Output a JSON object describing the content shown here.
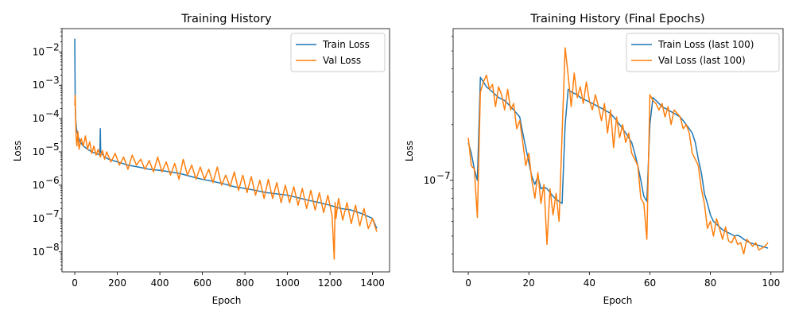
{
  "chart_data": [
    {
      "type": "line",
      "title": "Training History",
      "xlabel": "Epoch",
      "ylabel": "Loss",
      "yscale": "log",
      "xlim": [
        -60,
        1480
      ],
      "ylim": [
        2.5e-09,
        0.05
      ],
      "xticks": [
        0,
        200,
        400,
        600,
        800,
        1000,
        1200,
        1400
      ],
      "xtick_labels": [
        "0",
        "200",
        "400",
        "600",
        "800",
        "1000",
        "1200",
        "1400"
      ],
      "yticks": [
        1e-08,
        1e-07,
        1e-06,
        1e-05,
        0.0001,
        0.001,
        0.01
      ],
      "ytick_labels": [
        "10",
        "10",
        "10",
        "10",
        "10",
        "10",
        "10"
      ],
      "ytick_exponents": [
        "−8",
        "−7",
        "−6",
        "−5",
        "−4",
        "−3",
        "−2"
      ],
      "legend": "top-right",
      "series": [
        {
          "name": "Train Loss",
          "color": "#1f77b4",
          "x": [
            0,
            2,
            4,
            8,
            15,
            25,
            40,
            60,
            80,
            100,
            118,
            120,
            122,
            140,
            160,
            200,
            250,
            300,
            350,
            400,
            450,
            500,
            550,
            600,
            650,
            700,
            750,
            800,
            850,
            900,
            950,
            1000,
            1050,
            1100,
            1150,
            1200,
            1250,
            1300,
            1350,
            1400,
            1420
          ],
          "values": [
            0.025,
            0.0003,
            0.0001,
            5e-05,
            3e-05,
            2e-05,
            1.5e-05,
            1.2e-05,
            1e-05,
            9e-06,
            8e-06,
            5e-05,
            1e-05,
            7e-06,
            6e-06,
            5e-06,
            4e-06,
            3.5e-06,
            3e-06,
            2.8e-06,
            2.5e-06,
            2.2e-06,
            1.8e-06,
            1.5e-06,
            1.3e-06,
            1.1e-06,
            9e-07,
            8e-07,
            7e-07,
            6e-07,
            5.5e-07,
            5e-07,
            4.2e-07,
            3.5e-07,
            3e-07,
            2.5e-07,
            2e-07,
            1.8e-07,
            1.4e-07,
            1e-07,
            5e-08
          ]
        },
        {
          "name": "Val Loss",
          "color": "#ff7f0e",
          "x": [
            0,
            2,
            4,
            6,
            10,
            15,
            20,
            30,
            40,
            50,
            60,
            70,
            80,
            90,
            100,
            110,
            120,
            130,
            140,
            150,
            170,
            190,
            210,
            230,
            250,
            270,
            290,
            310,
            330,
            350,
            370,
            390,
            410,
            430,
            450,
            470,
            490,
            510,
            530,
            550,
            570,
            590,
            610,
            630,
            650,
            670,
            690,
            710,
            730,
            750,
            770,
            790,
            810,
            830,
            850,
            870,
            890,
            910,
            930,
            950,
            970,
            990,
            1010,
            1030,
            1050,
            1070,
            1090,
            1110,
            1130,
            1150,
            1170,
            1190,
            1210,
            1220,
            1224,
            1228,
            1240,
            1260,
            1280,
            1300,
            1320,
            1340,
            1360,
            1380,
            1400,
            1420
          ],
          "values": [
            0.00025,
            0.0005,
            0.0001,
            3e-05,
            1.5e-05,
            4e-05,
            1.2e-05,
            2.5e-05,
            1.5e-05,
            3e-05,
            1.2e-05,
            2e-05,
            9e-06,
            1.5e-05,
            8e-06,
            1.2e-05,
            7e-06,
            1.1e-05,
            6e-06,
            1e-05,
            5e-06,
            9e-06,
            4e-06,
            7e-06,
            3e-06,
            8e-06,
            4e-06,
            6e-06,
            3e-06,
            5.5e-06,
            2.5e-06,
            7e-06,
            2.5e-06,
            5e-06,
            2e-06,
            4.5e-06,
            1.5e-06,
            6e-06,
            2e-06,
            4e-06,
            1.5e-06,
            3.5e-06,
            1.5e-06,
            3e-06,
            1.2e-06,
            3.5e-06,
            1e-06,
            2e-06,
            9e-07,
            2.5e-06,
            7e-07,
            2e-06,
            6e-07,
            1.8e-06,
            5e-07,
            1.4e-06,
            4e-07,
            1.5e-06,
            4e-07,
            1.2e-06,
            3e-07,
            1e-06,
            3e-07,
            9e-07,
            2.5e-07,
            8e-07,
            2e-07,
            7e-07,
            1.8e-07,
            6e-07,
            1.5e-07,
            5e-07,
            1.2e-07,
            6e-09,
            3e-07,
            1e-07,
            4e-07,
            9e-08,
            3e-07,
            7e-08,
            2.5e-07,
            6e-08,
            2e-07,
            5e-08,
            1e-07,
            4e-08
          ]
        }
      ]
    },
    {
      "type": "line",
      "title": "Training History (Final Epochs)",
      "xlabel": "Epoch",
      "ylabel": "Loss",
      "yscale": "log",
      "xlim": [
        -5,
        104
      ],
      "ylim": [
        3.2e-08,
        6.6e-07
      ],
      "xticks": [
        0,
        20,
        40,
        60,
        80,
        100
      ],
      "xtick_labels": [
        "0",
        "20",
        "40",
        "60",
        "80",
        "100"
      ],
      "yticks": [
        1e-07
      ],
      "ytick_labels": [
        "10"
      ],
      "ytick_exponents": [
        "−7"
      ],
      "legend": "top-right",
      "series": [
        {
          "name": "Train Loss (last 100)",
          "color": "#1f77b4",
          "x": [
            0,
            1,
            2,
            3,
            4,
            5,
            6,
            7,
            8,
            9,
            10,
            11,
            12,
            13,
            14,
            15,
            16,
            17,
            18,
            19,
            20,
            21,
            22,
            23,
            24,
            25,
            26,
            27,
            28,
            29,
            30,
            31,
            32,
            33,
            34,
            35,
            36,
            37,
            38,
            39,
            40,
            41,
            42,
            43,
            44,
            45,
            46,
            47,
            48,
            49,
            50,
            51,
            52,
            53,
            54,
            55,
            56,
            57,
            58,
            59,
            60,
            61,
            62,
            63,
            64,
            65,
            66,
            67,
            68,
            69,
            70,
            71,
            72,
            73,
            74,
            75,
            76,
            77,
            78,
            79,
            80,
            81,
            82,
            83,
            84,
            85,
            86,
            87,
            88,
            89,
            90,
            91,
            92,
            93,
            94,
            95,
            96,
            97,
            98,
            99
          ],
          "values": [
            1.6e-07,
            1.4e-07,
            1.15e-07,
            1e-07,
            3.6e-07,
            3.4e-07,
            3.2e-07,
            3.1e-07,
            3e-07,
            2.9e-07,
            2.8e-07,
            2.75e-07,
            2.7e-07,
            2.6e-07,
            2.5e-07,
            2.4e-07,
            2.3e-07,
            2.2e-07,
            1.8e-07,
            1.5e-07,
            1.25e-07,
            1.05e-07,
            9.5e-08,
            1.05e-07,
            9e-08,
            9.2e-08,
            9e-08,
            8.6e-08,
            8.2e-08,
            7.9e-08,
            7.7e-08,
            7.5e-08,
            2e-07,
            3.1e-07,
            3e-07,
            2.95e-07,
            2.9e-07,
            2.8e-07,
            2.75e-07,
            2.7e-07,
            2.65e-07,
            2.6e-07,
            2.55e-07,
            2.5e-07,
            2.45e-07,
            2.4e-07,
            2.35e-07,
            2.3e-07,
            2.2e-07,
            2.1e-07,
            2e-07,
            1.9e-07,
            1.8e-07,
            1.7e-07,
            1.6e-07,
            1.4e-07,
            1.2e-07,
            1e-07,
            8.2e-08,
            7.7e-08,
            2e-07,
            2.8e-07,
            2.7e-07,
            2.6e-07,
            2.5e-07,
            2.45e-07,
            2.4e-07,
            2.35e-07,
            2.3e-07,
            2.25e-07,
            2.2e-07,
            2.1e-07,
            2e-07,
            1.9e-07,
            1.8e-07,
            1.6e-07,
            1.3e-07,
            1.1e-07,
            8.5e-08,
            7.5e-08,
            6.5e-08,
            6e-08,
            5.8e-08,
            5.6e-08,
            5.4e-08,
            5.3e-08,
            5.2e-08,
            5.1e-08,
            5e-08,
            5.05e-08,
            4.95e-08,
            4.8e-08,
            4.7e-08,
            4.6e-08,
            4.55e-08,
            4.5e-08,
            4.45e-08,
            4.4e-08,
            4.35e-08,
            4.3e-08
          ]
        },
        {
          "name": "Val Loss (last 100)",
          "color": "#ff7f0e",
          "x": [
            0,
            1,
            2,
            3,
            4,
            5,
            6,
            7,
            8,
            9,
            10,
            11,
            12,
            13,
            14,
            15,
            16,
            17,
            18,
            19,
            20,
            21,
            22,
            23,
            24,
            25,
            26,
            27,
            28,
            29,
            30,
            31,
            32,
            33,
            34,
            35,
            36,
            37,
            38,
            39,
            40,
            41,
            42,
            43,
            44,
            45,
            46,
            47,
            48,
            49,
            50,
            51,
            52,
            53,
            54,
            55,
            56,
            57,
            58,
            59,
            60,
            61,
            62,
            63,
            64,
            65,
            66,
            67,
            68,
            69,
            70,
            71,
            72,
            73,
            74,
            75,
            76,
            77,
            78,
            79,
            80,
            81,
            82,
            83,
            84,
            85,
            86,
            87,
            88,
            89,
            90,
            91,
            92,
            93,
            94,
            95,
            96,
            97,
            98,
            99
          ],
          "values": [
            1.7e-07,
            1.2e-07,
            1.15e-07,
            6.3e-08,
            3e-07,
            3.4e-07,
            3.7e-07,
            3.1e-07,
            3.3e-07,
            2.5e-07,
            3.2e-07,
            2.9e-07,
            2.4e-07,
            3.1e-07,
            2.4e-07,
            2.6e-07,
            1.9e-07,
            2.1e-07,
            1.6e-07,
            1.2e-07,
            1.4e-07,
            1e-07,
            8e-08,
            1.1e-07,
            7.5e-08,
            9.5e-08,
            4.5e-08,
            9e-08,
            6.5e-08,
            8.5e-08,
            6e-08,
            1.8e-07,
            5.2e-07,
            3.7e-07,
            2.5e-07,
            3.8e-07,
            2.8e-07,
            3.2e-07,
            2.6e-07,
            3.4e-07,
            2.7e-07,
            2.4e-07,
            2.9e-07,
            2.5e-07,
            2.1e-07,
            2.6e-07,
            1.8e-07,
            2.4e-07,
            1.5e-07,
            2.2e-07,
            1.7e-07,
            2e-07,
            1.6e-07,
            1.8e-07,
            1.4e-07,
            1.3e-07,
            1.2e-07,
            8e-08,
            7.5e-08,
            4.8e-08,
            2.9e-07,
            2.7e-07,
            2.6e-07,
            2.4e-07,
            2.6e-07,
            2.2e-07,
            2.5e-07,
            2e-07,
            2.4e-07,
            2.3e-07,
            2.2e-07,
            1.9e-07,
            2e-07,
            1.8e-07,
            1.4e-07,
            1.3e-07,
            1.2e-07,
            9e-08,
            7.5e-08,
            5.5e-08,
            6e-08,
            5e-08,
            6.2e-08,
            5.5e-08,
            4.8e-08,
            5.6e-08,
            4.7e-08,
            4.6e-08,
            5e-08,
            4.5e-08,
            4.6e-08,
            4e-08,
            4.8e-08,
            4.6e-08,
            4.4e-08,
            4.6e-08,
            4.2e-08,
            4.3e-08,
            4.4e-08,
            4.6e-08
          ]
        }
      ]
    }
  ]
}
